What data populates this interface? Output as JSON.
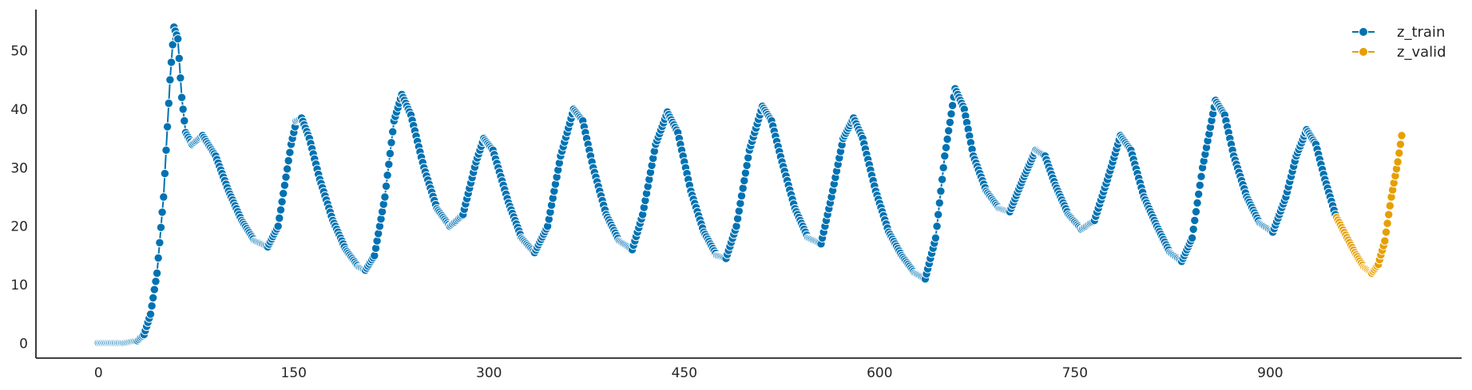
{
  "chart_data": {
    "type": "line",
    "marker": "circle",
    "grid": false,
    "legend_position": "top-right",
    "xlim": [
      -48,
      1047
    ],
    "ylim": [
      -2.5,
      57
    ],
    "x_ticks": [
      0,
      150,
      300,
      450,
      600,
      750,
      900
    ],
    "y_ticks": [
      0,
      10,
      20,
      30,
      40,
      50
    ],
    "series": [
      {
        "name": "z_train",
        "color": "#0072B2",
        "segments": [
          [
            0,
            0.1
          ],
          [
            20,
            0.1
          ],
          [
            30,
            0.5
          ],
          [
            35,
            1.5
          ],
          [
            40,
            5
          ],
          [
            45,
            12
          ],
          [
            50,
            25
          ],
          [
            55,
            45
          ],
          [
            58,
            54
          ],
          [
            61,
            52
          ],
          [
            64,
            42
          ],
          [
            67,
            36
          ],
          [
            72,
            34
          ],
          [
            80,
            35.5
          ],
          [
            90,
            32
          ],
          [
            100,
            26
          ],
          [
            110,
            21
          ],
          [
            120,
            17.5
          ],
          [
            130,
            16.5
          ],
          [
            138,
            20
          ],
          [
            143,
            27
          ],
          [
            148,
            34
          ],
          [
            152,
            38
          ],
          [
            156,
            38.5
          ],
          [
            162,
            35
          ],
          [
            170,
            28
          ],
          [
            180,
            21
          ],
          [
            190,
            16
          ],
          [
            200,
            13
          ],
          [
            205,
            12.5
          ],
          [
            212,
            15
          ],
          [
            220,
            25
          ],
          [
            227,
            38
          ],
          [
            233,
            42.5
          ],
          [
            240,
            39
          ],
          [
            250,
            30
          ],
          [
            260,
            23
          ],
          [
            270,
            20
          ],
          [
            280,
            22
          ],
          [
            290,
            31
          ],
          [
            296,
            35
          ],
          [
            303,
            33
          ],
          [
            315,
            24
          ],
          [
            325,
            18
          ],
          [
            335,
            15.5
          ],
          [
            345,
            20
          ],
          [
            355,
            32
          ],
          [
            365,
            40
          ],
          [
            372,
            38
          ],
          [
            380,
            30
          ],
          [
            390,
            22
          ],
          [
            400,
            17.5
          ],
          [
            410,
            16
          ],
          [
            418,
            22
          ],
          [
            428,
            34
          ],
          [
            437,
            39.5
          ],
          [
            445,
            36
          ],
          [
            455,
            26
          ],
          [
            465,
            19
          ],
          [
            475,
            15
          ],
          [
            482,
            14.5
          ],
          [
            490,
            20
          ],
          [
            500,
            33
          ],
          [
            510,
            40.5
          ],
          [
            517,
            38
          ],
          [
            525,
            31
          ],
          [
            535,
            23
          ],
          [
            545,
            18
          ],
          [
            555,
            17
          ],
          [
            563,
            25
          ],
          [
            572,
            35
          ],
          [
            580,
            38.5
          ],
          [
            587,
            35
          ],
          [
            597,
            26
          ],
          [
            607,
            19
          ],
          [
            617,
            15
          ],
          [
            627,
            12
          ],
          [
            635,
            11
          ],
          [
            643,
            18
          ],
          [
            650,
            32
          ],
          [
            658,
            43.5
          ],
          [
            665,
            40
          ],
          [
            672,
            32
          ],
          [
            682,
            26
          ],
          [
            692,
            23
          ],
          [
            700,
            22.5
          ],
          [
            710,
            28
          ],
          [
            720,
            33
          ],
          [
            727,
            32
          ],
          [
            735,
            27
          ],
          [
            745,
            22
          ],
          [
            755,
            19.5
          ],
          [
            765,
            21
          ],
          [
            775,
            28
          ],
          [
            785,
            35.5
          ],
          [
            793,
            33
          ],
          [
            803,
            25
          ],
          [
            813,
            20
          ],
          [
            823,
            15.5
          ],
          [
            832,
            14
          ],
          [
            840,
            18
          ],
          [
            848,
            30
          ],
          [
            858,
            41.5
          ],
          [
            865,
            39
          ],
          [
            872,
            32
          ],
          [
            882,
            25
          ],
          [
            892,
            20.5
          ],
          [
            902,
            19
          ],
          [
            912,
            25
          ],
          [
            920,
            32
          ],
          [
            928,
            36.5
          ],
          [
            935,
            34
          ],
          [
            942,
            28
          ],
          [
            950,
            22
          ]
        ]
      },
      {
        "name": "z_valid",
        "color": "#E69F00",
        "segments": [
          [
            951,
            21.5
          ],
          [
            958,
            18.5
          ],
          [
            965,
            15.5
          ],
          [
            972,
            13
          ],
          [
            978,
            12
          ],
          [
            983,
            13.5
          ],
          [
            988,
            17.5
          ],
          [
            993,
            25
          ],
          [
            998,
            31
          ],
          [
            1001,
            35.5
          ]
        ]
      }
    ]
  }
}
